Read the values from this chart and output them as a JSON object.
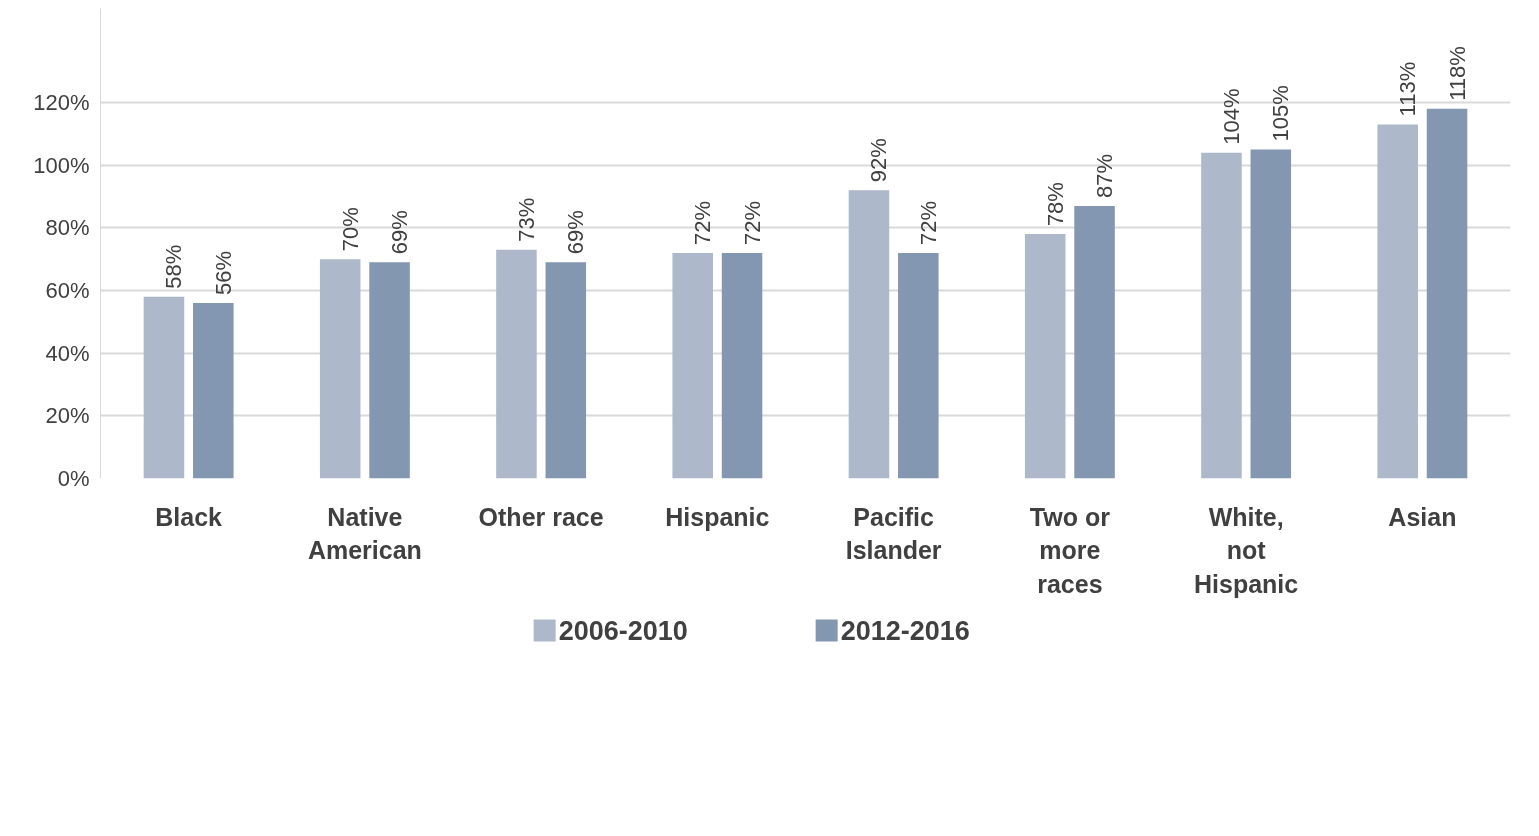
{
  "chart_data": {
    "type": "bar",
    "categories": [
      "Black",
      "Native\nAmerican",
      "Other race",
      "Hispanic",
      "Pacific\nIslander",
      "Two or\nmore\nraces",
      "White,\nnot\nHispanic",
      "Asian"
    ],
    "series": [
      {
        "name": "2006-2010",
        "color": "#adb9ca",
        "values": [
          58,
          70,
          73,
          72,
          92,
          78,
          104,
          113
        ],
        "value_labels": [
          "58%",
          "70%",
          "73%",
          "72%",
          "92%",
          "78%",
          "104%",
          "113%"
        ]
      },
      {
        "name": "2012-2016",
        "color": "#8497b0",
        "values": [
          56,
          69,
          69,
          72,
          72,
          87,
          105,
          118
        ],
        "value_labels": [
          "56%",
          "69%",
          "69%",
          "72%",
          "72%",
          "87%",
          "105%",
          "118%"
        ]
      }
    ],
    "ylim": [
      0,
      150
    ],
    "yticks": [
      {
        "value": 0,
        "label": "0%"
      },
      {
        "value": 20,
        "label": "20%"
      },
      {
        "value": 40,
        "label": "40%"
      },
      {
        "value": 60,
        "label": "60%"
      },
      {
        "value": 80,
        "label": "80%"
      },
      {
        "value": 100,
        "label": "100%"
      },
      {
        "value": 120,
        "label": "120%"
      }
    ],
    "grid": "y",
    "legend": "bottom"
  }
}
